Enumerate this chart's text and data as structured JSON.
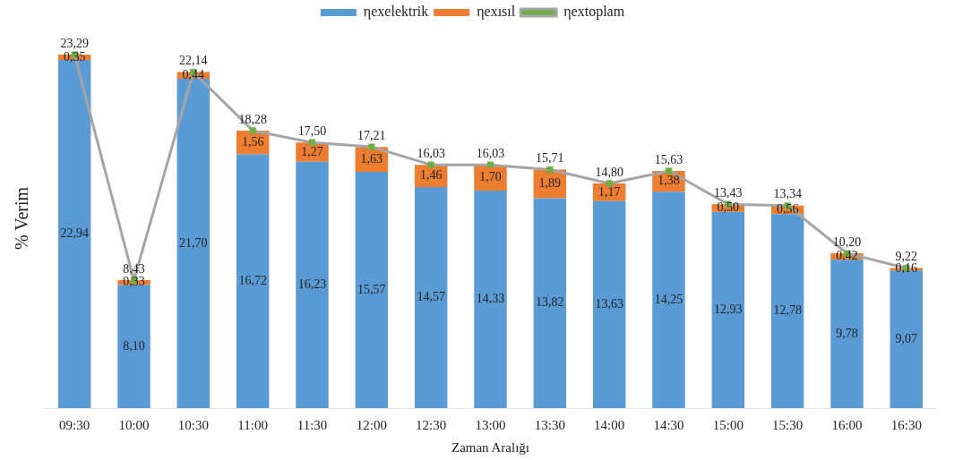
{
  "chart_data": {
    "type": "bar",
    "stacked": true,
    "xlabel": "Zaman Aralığı",
    "ylabel": "% Verim",
    "legend": "top",
    "categories": [
      "09:30",
      "10:00",
      "10:30",
      "11:00",
      "11:30",
      "12:00",
      "12:30",
      "13:00",
      "13:30",
      "14:00",
      "14:30",
      "15:00",
      "15:30",
      "16:00",
      "16:30"
    ],
    "series": [
      {
        "name": "ηexelektrik",
        "color": "#5b9bd5",
        "values": [
          22.94,
          8.1,
          21.7,
          16.72,
          16.23,
          15.57,
          14.57,
          14.33,
          13.82,
          13.63,
          14.25,
          12.93,
          12.78,
          9.78,
          9.07
        ],
        "value_labels": [
          "22,94",
          "8,10",
          "21,70",
          "16,72",
          "16,23",
          "15,57",
          "14,57",
          "14,33",
          "13,82",
          "13,63",
          "14,25",
          "12,93",
          "12,78",
          "9,78",
          "9,07"
        ]
      },
      {
        "name": "ηexısıl",
        "color": "#ed7d31",
        "values": [
          0.35,
          0.33,
          0.44,
          1.56,
          1.27,
          1.63,
          1.46,
          1.7,
          1.89,
          1.17,
          1.38,
          0.5,
          0.56,
          0.42,
          0.16
        ],
        "value_labels": [
          "0,35",
          "0,33",
          "0,44",
          "1,56",
          "1,27",
          "1,63",
          "1,46",
          "1,70",
          "1,89",
          "1,17",
          "1,38",
          "0,50",
          "0,56",
          "0,42",
          "0,16"
        ]
      },
      {
        "name": "ηextoplam",
        "type": "line",
        "color": "#a5a5a5",
        "marker": "square",
        "values": [
          23.29,
          8.43,
          22.14,
          18.28,
          17.5,
          17.21,
          16.03,
          16.03,
          15.71,
          14.8,
          15.63,
          13.43,
          13.34,
          10.2,
          9.22
        ],
        "value_labels": [
          "23,29",
          "8,43",
          "22,14",
          "18,28",
          "17,50",
          "17,21",
          "16,03",
          "16,03",
          "15,71",
          "14,80",
          "15,63",
          "13,43",
          "13,34",
          "10,20",
          "9,22"
        ]
      }
    ]
  }
}
